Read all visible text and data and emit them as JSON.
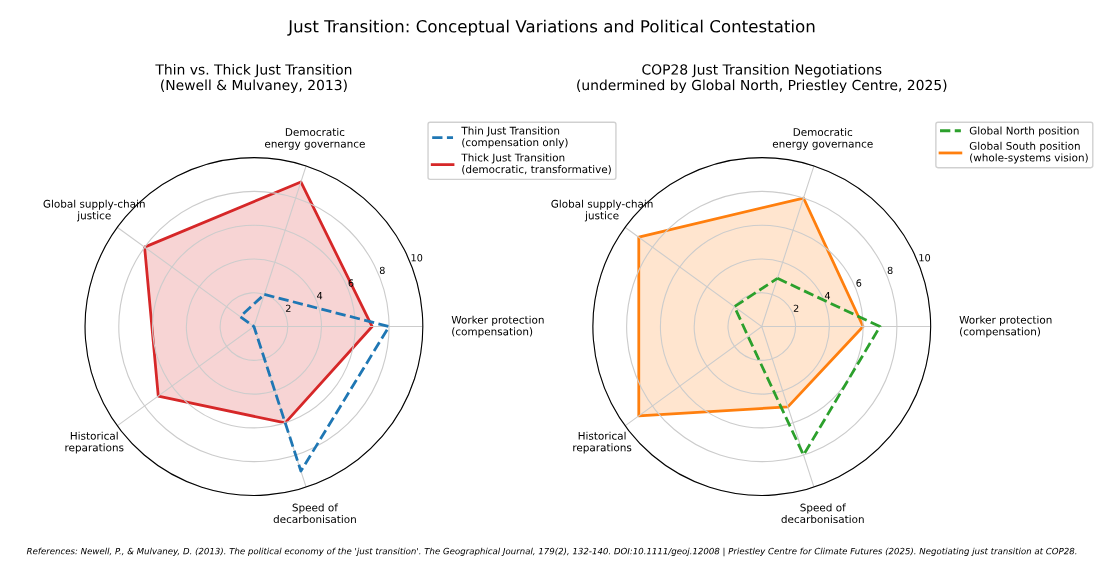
{
  "chart_data": [
    {
      "type": "radar",
      "title": "Thin vs. Thick Just Transition\n(Newell & Mulvaney, 2013)",
      "categories": [
        "Democratic\nenergy governance",
        "Worker protection\n(compensation)",
        "Speed of\ndecarbonisation",
        "Historical\nreparations",
        "Global supply-chain\njustice"
      ],
      "ylim": [
        0,
        10
      ],
      "yticks": [
        2,
        4,
        6,
        8,
        10
      ],
      "grid": true,
      "legend": "top right",
      "series": [
        {
          "name": "Thin Just Transition\n(compensation only)",
          "color": "#1f77b4",
          "line_style": "dashed",
          "values": [
            2,
            8,
            9,
            0,
            1
          ]
        },
        {
          "name": "Thick Just Transition\n(democratic, transformative)",
          "color": "#d62728",
          "line_style": "solid",
          "values": [
            9,
            7,
            6,
            7,
            8
          ]
        }
      ],
      "annotations": [
        "Just Transition: Conceptual Variations and Political Contestation",
        "References: Newell, P., & Mulvaney, D. (2013). The political economy of the 'just transition'. The Geographical Journal, 179(2), 132-140. DOI:10.1111/geoj.12008 | Priestley Centre for Climate Futures (2025). Negotiating just transition at COP28."
      ]
    },
    {
      "type": "radar",
      "title": "COP28 Just Transition Negotiations\n(undermined by Global North, Priestley Centre, 2025)",
      "categories": [
        "Democratic\nenergy governance",
        "Worker protection\n(compensation)",
        "Speed of\ndecarbonisation",
        "Historical\nreparations",
        "Global supply-chain\njustice"
      ],
      "ylim": [
        0,
        10
      ],
      "yticks": [
        2,
        4,
        6,
        8,
        10
      ],
      "grid": true,
      "legend": "top right",
      "series": [
        {
          "name": "Global North position",
          "color": "#2ca02c",
          "line_style": "dashed",
          "values": [
            3,
            7,
            8,
            1,
            2
          ]
        },
        {
          "name": "Global South position\n(whole-systems vision)",
          "color": "#ff7f0e",
          "line_style": "solid",
          "values": [
            8,
            6,
            5,
            9,
            9
          ]
        }
      ]
    }
  ]
}
